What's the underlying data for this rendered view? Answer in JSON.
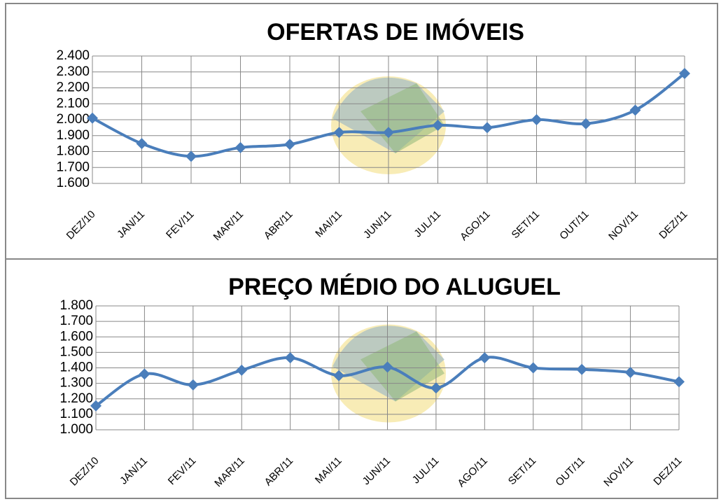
{
  "chart_data": [
    {
      "type": "line",
      "title": "OFERTAS DE IMÓVEIS",
      "categories": [
        "DEZ/10",
        "JAN/11",
        "FEV/11",
        "MAR/11",
        "ABR/11",
        "MAI/11",
        "JUN/11",
        "JUL/11",
        "AGO/11",
        "SET/11",
        "OUT/11",
        "NOV/11",
        "DEZ/11"
      ],
      "series": [
        {
          "color": "#4a7ebb",
          "values": [
            2010,
            1850,
            1770,
            1825,
            1845,
            1920,
            1920,
            1965,
            1950,
            2000,
            1975,
            2060,
            2290
          ]
        }
      ],
      "ylim": [
        1600,
        2400
      ],
      "yticks": [
        {
          "value": 1600,
          "label": "1.600"
        },
        {
          "value": 1700,
          "label": "1.700"
        },
        {
          "value": 1800,
          "label": "1.800"
        },
        {
          "value": 1900,
          "label": "1.900"
        },
        {
          "value": 2000,
          "label": "2.000"
        },
        {
          "value": 2100,
          "label": "2.100"
        },
        {
          "value": 2200,
          "label": "2.200"
        },
        {
          "value": 2300,
          "label": "2.300"
        },
        {
          "value": 2400,
          "label": "2.400"
        }
      ],
      "grid": true
    },
    {
      "type": "line",
      "title": "PREÇO MÉDIO DO ALUGUEL",
      "categories": [
        "DEZ/10",
        "JAN/11",
        "FEV/11",
        "MAR/11",
        "ABR/11",
        "MAI/11",
        "JUN/11",
        "JUL/11",
        "AGO/11",
        "SET/11",
        "OUT/11",
        "NOV/11",
        "DEZ/11"
      ],
      "series": [
        {
          "color": "#4a7ebb",
          "values": [
            1155,
            1360,
            1290,
            1385,
            1465,
            1350,
            1405,
            1270,
            1465,
            1400,
            1390,
            1370,
            1310
          ]
        }
      ],
      "ylim": [
        1000,
        1800
      ],
      "yticks": [
        {
          "value": 1000,
          "label": "1.000"
        },
        {
          "value": 1100,
          "label": "1.100"
        },
        {
          "value": 1200,
          "label": "1.200"
        },
        {
          "value": 1300,
          "label": "1.300"
        },
        {
          "value": 1400,
          "label": "1.400"
        },
        {
          "value": 1500,
          "label": "1.500"
        },
        {
          "value": 1600,
          "label": "1.600"
        },
        {
          "value": 1700,
          "label": "1.700"
        },
        {
          "value": 1800,
          "label": "1.800"
        }
      ],
      "grid": true
    }
  ]
}
